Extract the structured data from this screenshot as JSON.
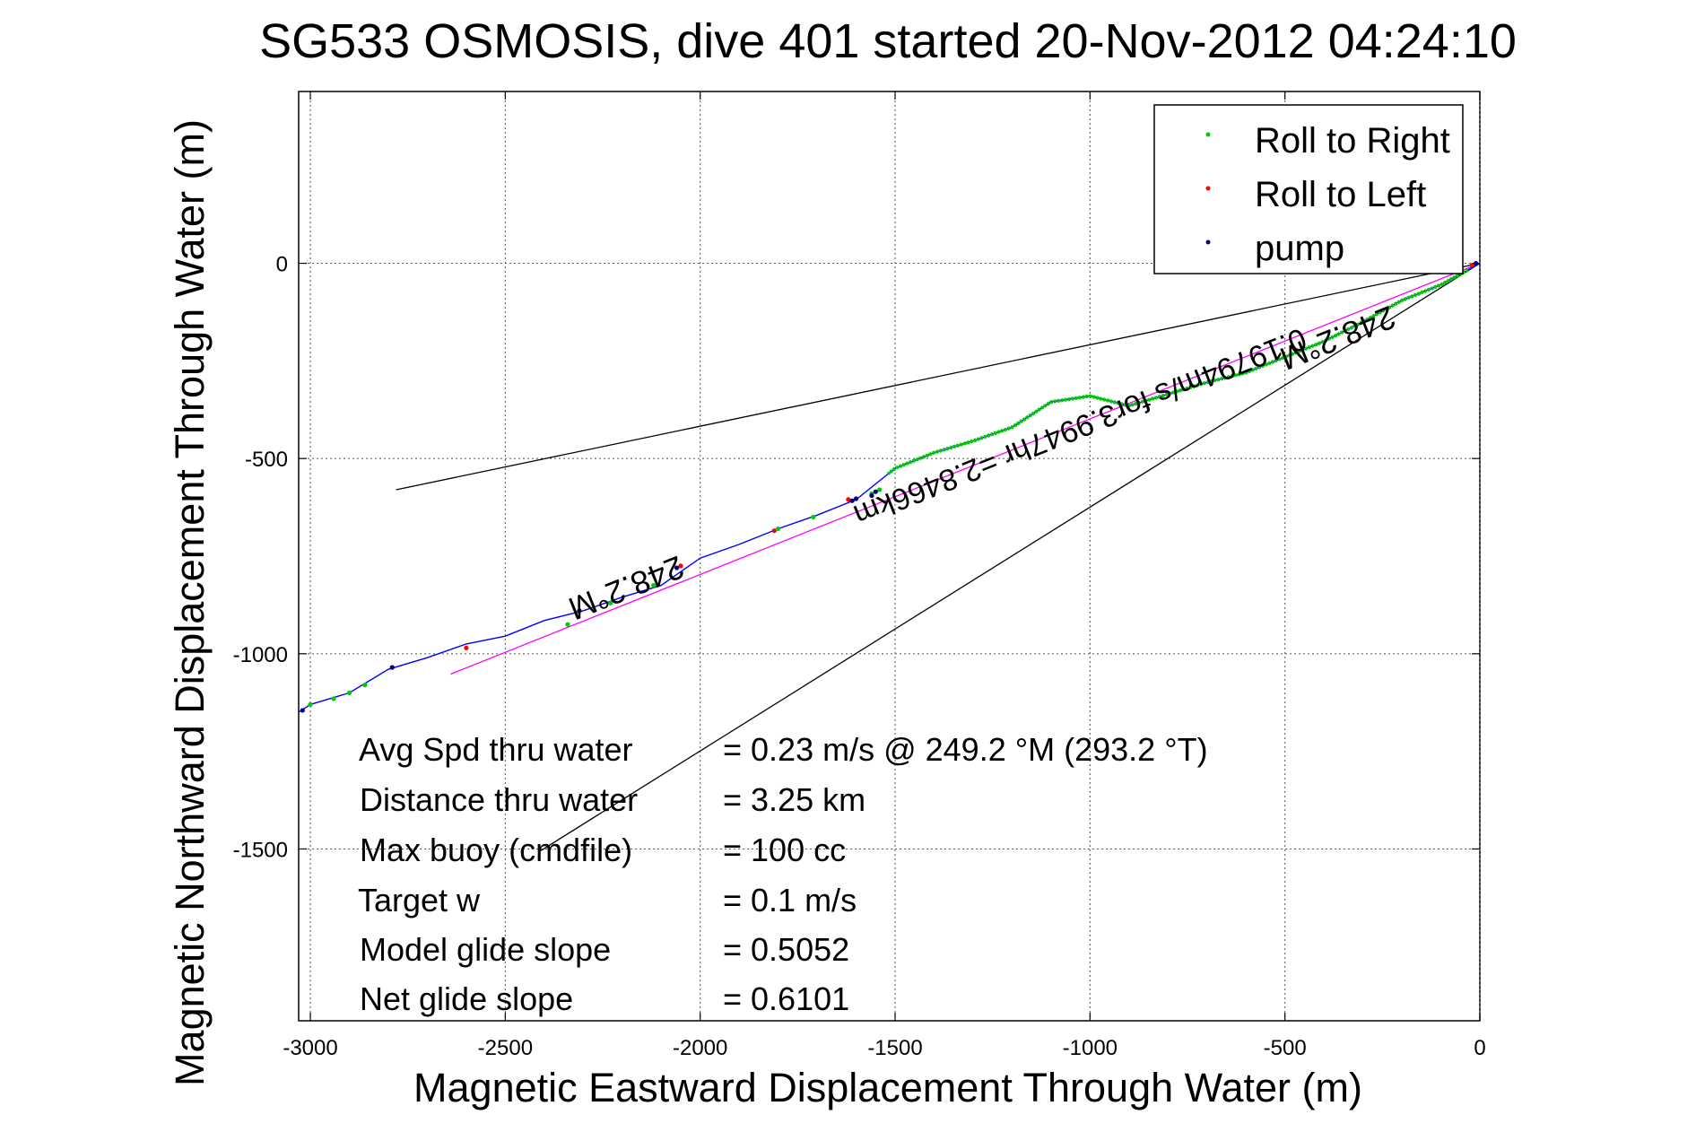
{
  "chart_data": {
    "type": "line",
    "title": "SG533 OSMOSIS, dive 401 started 20-Nov-2012 04:24:10",
    "xlabel": "Magnetic Eastward Displacement Through Water (m)",
    "ylabel": "Magnetic Northward Displacement Through Water (m)",
    "xlim": [
      -3030,
      0
    ],
    "ylim": [
      -1940,
      440
    ],
    "xticks": [
      -3000,
      -2500,
      -2000,
      -1500,
      -1000,
      -500,
      0
    ],
    "yticks": [
      0,
      -500,
      -1000,
      -1500
    ],
    "xtick_labels": [
      "-3000",
      "-2500",
      "-2000",
      "-1500",
      "-1000",
      "-500",
      "0"
    ],
    "ytick_labels": [
      "0",
      "-500",
      "-1000",
      "-1500"
    ],
    "grid": true,
    "legend": {
      "placement": "top-right",
      "entries": [
        {
          "label": "Roll to Right",
          "color": "#00cc00"
        },
        {
          "label": "Roll to Left",
          "color": "#ff0000"
        },
        {
          "label": "pump",
          "color": "#000080"
        }
      ]
    },
    "track": {
      "color": "#0000ff",
      "x": [
        0,
        -100,
        -200,
        -300,
        -400,
        -500,
        -600,
        -700,
        -800,
        -900,
        -1000,
        -1100,
        -1200,
        -1300,
        -1400,
        -1500,
        -1600,
        -1700,
        -1800,
        -1900,
        -2000,
        -2100,
        -2200,
        -2300,
        -2400,
        -2500,
        -2600,
        -2700,
        -2800,
        -2900,
        -3000,
        -3030
      ],
      "y": [
        0,
        -55,
        -95,
        -150,
        -200,
        -240,
        -280,
        -305,
        -335,
        -365,
        -340,
        -355,
        -420,
        -455,
        -485,
        -525,
        -605,
        -645,
        -680,
        -720,
        -755,
        -825,
        -855,
        -890,
        -915,
        -955,
        -975,
        -1010,
        -1040,
        -1100,
        -1130,
        -1150
      ]
    },
    "roll_right_segments": [
      {
        "x_from": -30,
        "x_to": -1520
      }
    ],
    "markers": {
      "roll_right": [
        {
          "x": -3000,
          "y": -1130
        },
        {
          "x": -2940,
          "y": -1115
        },
        {
          "x": -2900,
          "y": -1100
        },
        {
          "x": -2860,
          "y": -1080
        },
        {
          "x": -2340,
          "y": -925
        },
        {
          "x": -2230,
          "y": -870
        },
        {
          "x": -2120,
          "y": -825
        },
        {
          "x": -2060,
          "y": -780
        },
        {
          "x": -1800,
          "y": -680
        },
        {
          "x": -1710,
          "y": -650
        },
        {
          "x": -1560,
          "y": -590
        },
        {
          "x": -1540,
          "y": -580
        }
      ],
      "roll_left": [
        {
          "x": -2790,
          "y": -1035
        },
        {
          "x": -2600,
          "y": -985
        },
        {
          "x": -2310,
          "y": -890
        },
        {
          "x": -2050,
          "y": -775
        },
        {
          "x": -1810,
          "y": -685
        },
        {
          "x": -1620,
          "y": -605
        },
        {
          "x": -20,
          "y": -5
        }
      ],
      "pump": [
        {
          "x": -3020,
          "y": -1145
        },
        {
          "x": -2790,
          "y": -1035
        },
        {
          "x": -2310,
          "y": -890
        },
        {
          "x": -2060,
          "y": -780
        },
        {
          "x": -1560,
          "y": -595
        },
        {
          "x": -1550,
          "y": -585
        },
        {
          "x": -1600,
          "y": -603
        },
        {
          "x": -1610,
          "y": -608
        },
        {
          "x": -10,
          "y": 0
        }
      ]
    },
    "lines": [
      {
        "name": "heading-line",
        "color": "#ff00ff",
        "x": [
          0,
          -2640
        ],
        "y": [
          0,
          -1052
        ]
      },
      {
        "name": "cone-upper",
        "color": "#000000",
        "x": [
          0,
          -2780
        ],
        "y": [
          0,
          -580
        ]
      },
      {
        "name": "cone-lower",
        "color": "#000000",
        "x": [
          0,
          -2410
        ],
        "y": [
          0,
          -1505
        ]
      }
    ],
    "annotations": [
      {
        "text": "248.2°M",
        "x": -2200,
        "y": -805,
        "rotation_deg": 158.2
      },
      {
        "text": "248.2°M",
        "x": -375,
        "y": -165,
        "rotation_deg": 158.2
      },
      {
        "text": "0.19794m/s for3.9947hr =2.8466km",
        "x": -1035,
        "y": -395,
        "rotation_deg": 158.2
      }
    ],
    "stats": [
      {
        "label": "Avg Spd thru water",
        "value": "=  0.23 m/s @ 249.2 °M (293.2 °T)"
      },
      {
        "label": "Distance thru water",
        "value": "=  3.25 km"
      },
      {
        "label": "Max buoy (cmdfile)",
        "value": "= 100 cc"
      },
      {
        "label": "Target w",
        "value": "= 0.1 m/s"
      },
      {
        "label": "Model glide slope",
        "value": "= 0.5052"
      },
      {
        "label": "Net glide slope",
        "value": "= 0.6101"
      }
    ]
  }
}
